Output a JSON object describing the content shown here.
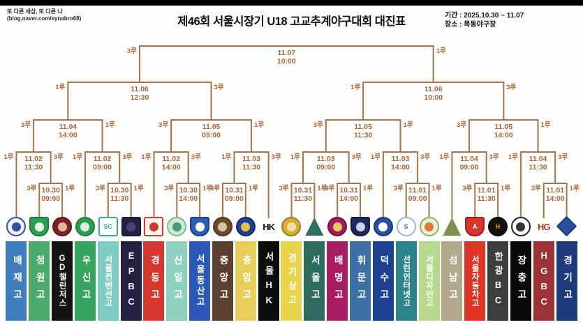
{
  "meta": {
    "blog_line1": "또 다른 세상, 또 다른 나",
    "blog_line2": "(blog.naver.com/synabro68)",
    "title": "제46회 서울시장기 U18 고교추계야구대회 대진표",
    "period": "기간 : 2025.10.30 ~ 11.07",
    "venue": "장소 : 목동야구장"
  },
  "colors": {
    "line": "#a8744e",
    "bracket_text": "#a5673f",
    "letterbox": "#000000"
  },
  "teams": [
    {
      "name": "배재고",
      "box": "#3f7dbb",
      "text": "#ffffff",
      "logo": {
        "shape": "circle",
        "bg": "#eef2f8",
        "border": "#30519f",
        "inner": "#30519f"
      }
    },
    {
      "name": "청원고",
      "box": "#4cab68",
      "text": "#ffffff",
      "logo": {
        "shape": "shield",
        "bg": "#2f9e53",
        "border": "#1e7a3c",
        "inner": "#e8f5ec"
      }
    },
    {
      "name": "GD챌린저스",
      "box": "#141414",
      "text": "#ffffff",
      "logo": {
        "shape": "circle",
        "bg": "#7c2426",
        "border": "#53181a",
        "inner": "#e3b49f"
      }
    },
    {
      "name": "우신고",
      "box": "#36a35e",
      "text": "#ffffff",
      "logo": {
        "shape": "circle",
        "bg": "#2f9e53",
        "border": "#237a3e",
        "inner": "#d9efe0"
      }
    },
    {
      "name": "서울컨벤션고",
      "box": "#7fccc3",
      "text": "#ffffff",
      "logo": {
        "shape": "square",
        "bg": "#ffffff",
        "border": "#3aa79c",
        "glyph": "SC",
        "fg": "#3aa79c"
      }
    },
    {
      "name": "EPBC",
      "box": "#261f45",
      "text": "#ffffff",
      "logo": {
        "shape": "square",
        "bg": "#262047",
        "border": "#1a1633",
        "inner": "#4a4273"
      }
    },
    {
      "name": "경동고",
      "box": "#d7372e",
      "text": "#ffffff",
      "logo": {
        "shape": "square",
        "bg": "#fdf4f0",
        "border": "#cf3a30",
        "inner": "#cf3a30"
      }
    },
    {
      "name": "신일고",
      "box": "#8ed1bf",
      "text": "#ffffff",
      "logo": {
        "shape": "circle",
        "bg": "#cde9da",
        "border": "#79b897",
        "inner": "#4e9a6f"
      }
    },
    {
      "name": "서울동산고",
      "box": "#2c58b8",
      "text": "#ffffff",
      "logo": {
        "shape": "shield",
        "bg": "#2c5cb5",
        "border": "#1d3f85",
        "inner": "#ffffff"
      }
    },
    {
      "name": "중앙고",
      "box": "#5c4030",
      "text": "#ffffff",
      "logo": {
        "shape": "circle",
        "bg": "#6f4a2f",
        "border": "#4e3320",
        "inner": "#d8c3a9"
      }
    },
    {
      "name": "충암고",
      "box": "#e8cf5c",
      "text": "#ffffff",
      "logo": {
        "shape": "circle",
        "bg": "#1f3f8e",
        "border": "#142a61",
        "inner": "#e3c34d"
      }
    },
    {
      "name": "서울HK",
      "box": "#0d0d0d",
      "text": "#ffffff",
      "logo": {
        "shape": "textmark",
        "glyph": "HK",
        "fg": "#111111"
      }
    },
    {
      "name": "경기상고",
      "box": "#e7d44c",
      "text": "#ffffff",
      "logo": {
        "shape": "circle",
        "bg": "#d4ad3a",
        "border": "#9e7d22",
        "inner": "#f2e2a0"
      }
    },
    {
      "name": "서울고",
      "box": "#2d6a60",
      "text": "#ffffff",
      "logo": {
        "shape": "triangle",
        "bg": "#2e6e63"
      }
    },
    {
      "name": "배명고",
      "box": "#a81d63",
      "text": "#ffffff",
      "logo": {
        "shape": "circle",
        "bg": "#a11d5e",
        "border": "#70123f",
        "inner": "#e9c86a"
      }
    },
    {
      "name": "휘문고",
      "box": "#3e70a6",
      "text": "#ffffff",
      "logo": {
        "shape": "shield",
        "bg": "#1d2a5c",
        "border": "#101a3d",
        "inner": "#c9d2ea"
      }
    },
    {
      "name": "덕수고",
      "box": "#1e4291",
      "text": "#ffffff",
      "logo": {
        "shape": "circle",
        "bg": "#2b4f9e",
        "border": "#1c3a78",
        "inner": "#ffffff"
      }
    },
    {
      "name": "선린인터넷고",
      "box": "#2a8489",
      "text": "#ffffff",
      "logo": {
        "shape": "circle",
        "bg": "#ffffff",
        "border": "#9fb6c9",
        "glyph": "S",
        "fg": "#2e7fb5"
      }
    },
    {
      "name": "서울디자인고",
      "box": "#b8d98d",
      "text": "#ffffff",
      "logo": {
        "shape": "circle",
        "bg": "#e8f0d8",
        "border": "#8fae5e",
        "inner": "#e07a3a"
      }
    },
    {
      "name": "성남고",
      "box": "#b3a98c",
      "text": "#ffffff",
      "logo": {
        "shape": "triangle",
        "bg": "#7e9150"
      }
    },
    {
      "name": "서울자동차고",
      "box": "#df3526",
      "text": "#ffffff",
      "logo": {
        "shape": "shield",
        "bg": "#d5372b",
        "border": "#9e231b",
        "glyph": "A",
        "fg": "#ffffff"
      }
    },
    {
      "name": "한광BC",
      "box": "#3d3d3d",
      "text": "#ffffff",
      "logo": {
        "shape": "circle",
        "bg": "#15110d",
        "border": "#000000",
        "glyph": "H",
        "fg": "#d9a531"
      }
    },
    {
      "name": "장충고",
      "box": "#0a0a0a",
      "text": "#ffffff",
      "logo": {
        "shape": "circle",
        "bg": "#ffffff",
        "border": "#222222",
        "inner": "#333333"
      }
    },
    {
      "name": "HGBC",
      "box": "#9c3136",
      "text": "#ffffff",
      "logo": {
        "shape": "textmark",
        "glyph": "HG",
        "fg": "#b5342c"
      }
    },
    {
      "name": "경기고",
      "box": "#1f3b7c",
      "text": "#ffffff",
      "logo": {
        "shape": "diamond",
        "bg": "#2b4f9e",
        "border": "#1c3a78"
      }
    }
  ],
  "bracket": {
    "rounds": [
      {
        "id": "r1",
        "base_left": "3루",
        "base_right": "1루",
        "games": [
          {
            "id": "g1",
            "date": "10.30",
            "time": "09:00",
            "left": "t1",
            "right": "t2"
          },
          {
            "id": "g2",
            "date": "10.30",
            "time": "11:30",
            "left": "t4",
            "right": "t5"
          },
          {
            "id": "g3",
            "date": "10.30",
            "time": "14:00",
            "left": "t7",
            "right": "t8"
          },
          {
            "id": "g4",
            "date": "10.31",
            "time": "09:00",
            "left": "t9",
            "right": "t10"
          },
          {
            "id": "g5",
            "date": "10.31",
            "time": "11:30",
            "left": "t12",
            "right": "t13"
          },
          {
            "id": "g6",
            "date": "10.31",
            "time": "14:00",
            "left": "t14",
            "right": "t15"
          },
          {
            "id": "g7",
            "date": "11.01",
            "time": "09:00",
            "left": "t17",
            "right": "t18"
          },
          {
            "id": "g8",
            "date": "11.01",
            "time": "11:30",
            "left": "t20",
            "right": "t21"
          },
          {
            "id": "g9",
            "date": "11.01",
            "time": "14:00",
            "left": "t23",
            "right": "t24"
          }
        ]
      },
      {
        "id": "r16",
        "base_left": "1루",
        "base_right": "3루",
        "games": [
          {
            "id": "h1",
            "date": "11.02",
            "time": "11:30",
            "left": "t0",
            "right": "g1"
          },
          {
            "id": "h2",
            "date": "11.02",
            "time": "09:00",
            "left": "t3",
            "right": "g2"
          },
          {
            "id": "h3",
            "date": "11.02",
            "time": "14:00",
            "left": "t6",
            "right": "g3"
          },
          {
            "id": "h4",
            "date": "11.03",
            "time": "11:30",
            "left": "g4",
            "right": "t11"
          },
          {
            "id": "h5",
            "date": "11.03",
            "time": "09:00",
            "left": "g5",
            "right": "g6"
          },
          {
            "id": "h6",
            "date": "11.03",
            "time": "14:00",
            "left": "t16",
            "right": "g7"
          },
          {
            "id": "h7",
            "date": "11.04",
            "time": "09:00",
            "left": "t19",
            "right": "g8"
          },
          {
            "id": "h8",
            "date": "11.04",
            "time": "11:30",
            "left": "t22",
            "right": "g9"
          }
        ]
      },
      {
        "id": "qf",
        "base_left": "3루",
        "base_right": "1루",
        "games": [
          {
            "id": "q1",
            "date": "11.04",
            "time": "14:00",
            "left": "h1",
            "right": "h2"
          },
          {
            "id": "q2",
            "date": "11.05",
            "time": "09:00",
            "left": "h3",
            "right": "h4"
          },
          {
            "id": "q3",
            "date": "11.05",
            "time": "11:30",
            "left": "h5",
            "right": "h6"
          },
          {
            "id": "q4",
            "date": "11.05",
            "time": "14:00",
            "left": "h7",
            "right": "h8"
          }
        ]
      },
      {
        "id": "sf",
        "base_left": "1루",
        "base_right": "3루",
        "games": [
          {
            "id": "s1",
            "date": "11.06",
            "time": "12:30",
            "left": "q1",
            "right": "q2"
          },
          {
            "id": "s2",
            "date": "11.06",
            "time": "10:00",
            "left": "q3",
            "right": "q4"
          }
        ]
      },
      {
        "id": "f",
        "base_left": "3루",
        "base_right": "1루",
        "games": [
          {
            "id": "f1",
            "date": "11.07",
            "time": "10:00",
            "left": "s1",
            "right": "s2"
          }
        ]
      }
    ]
  }
}
